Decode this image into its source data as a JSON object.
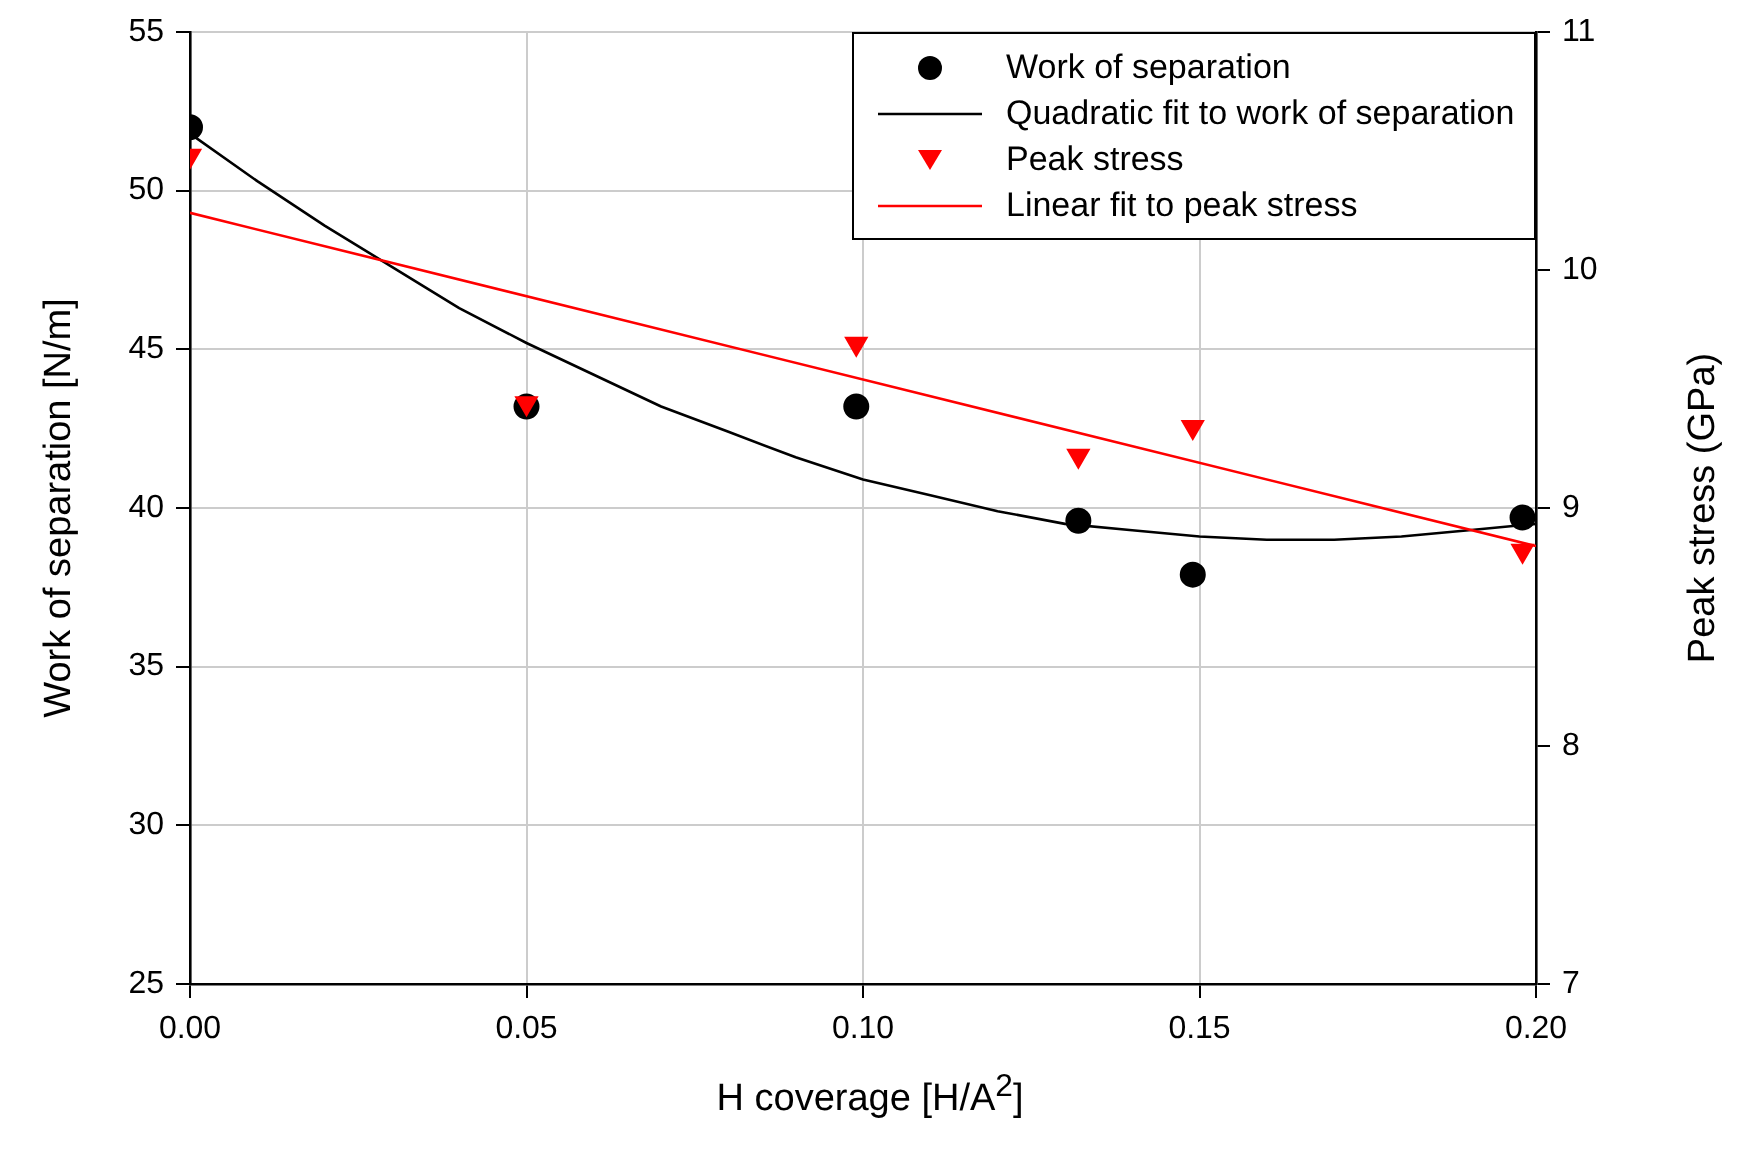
{
  "chart_data": {
    "type": "scatter",
    "xlabel": "H coverage [H/A$^{2}$]",
    "ylabel": "Work of separation [N/m]",
    "y2label": "Peak stress (GPa)",
    "xlim": [
      0,
      0.2
    ],
    "xticks": [
      {
        "value": 0,
        "label": "0.00"
      },
      {
        "value": 0.05,
        "label": "0.05"
      },
      {
        "value": 0.1,
        "label": "0.10"
      },
      {
        "value": 0.15,
        "label": "0.15"
      },
      {
        "value": 0.2,
        "label": "0.20"
      }
    ],
    "ylim": [
      25,
      55
    ],
    "yticks": [
      25,
      30,
      35,
      40,
      45,
      50,
      55
    ],
    "y2lim": [
      7,
      11
    ],
    "y2ticks": [
      7,
      8,
      9,
      10,
      11
    ],
    "grid": true,
    "legend": "top right",
    "series": [
      {
        "name": "Work of separation",
        "type": "scatter",
        "marker": "circle",
        "color": "#000000",
        "x": [
          0,
          0.05,
          0.099,
          0.132,
          0.149,
          0.198
        ],
        "values": [
          52.0,
          43.2,
          43.2,
          39.6,
          37.9,
          39.7
        ]
      },
      {
        "name": "Quadratic fit to work of separation",
        "type": "line",
        "marker": "none",
        "color": "#000000",
        "x": [
          0,
          0.01,
          0.02,
          0.03,
          0.04,
          0.05,
          0.06,
          0.07,
          0.08,
          0.09,
          0.1,
          0.11,
          0.12,
          0.13,
          0.14,
          0.15,
          0.16,
          0.17,
          0.18,
          0.19,
          0.2
        ],
        "values": [
          51.8,
          50.3,
          48.9,
          47.6,
          46.3,
          45.2,
          44.2,
          43.2,
          42.4,
          41.6,
          40.9,
          40.4,
          39.9,
          39.5,
          39.3,
          39.1,
          39.0,
          39.0,
          39.1,
          39.3,
          39.5
        ]
      },
      {
        "name": "Peak stress",
        "type": "scatter",
        "marker": "triangle",
        "color": "#ff0000",
        "axis": "y2",
        "x": [
          0,
          0.05,
          0.099,
          0.132,
          0.149,
          0.198
        ],
        "values": [
          10.48,
          9.44,
          9.69,
          9.22,
          9.34,
          8.82
        ]
      },
      {
        "name": "Linear fit to peak stress",
        "type": "line",
        "marker": "none",
        "color": "#ff0000",
        "axis": "y2",
        "x": [
          0,
          0.2
        ],
        "values": [
          10.24,
          8.84
        ]
      }
    ]
  }
}
